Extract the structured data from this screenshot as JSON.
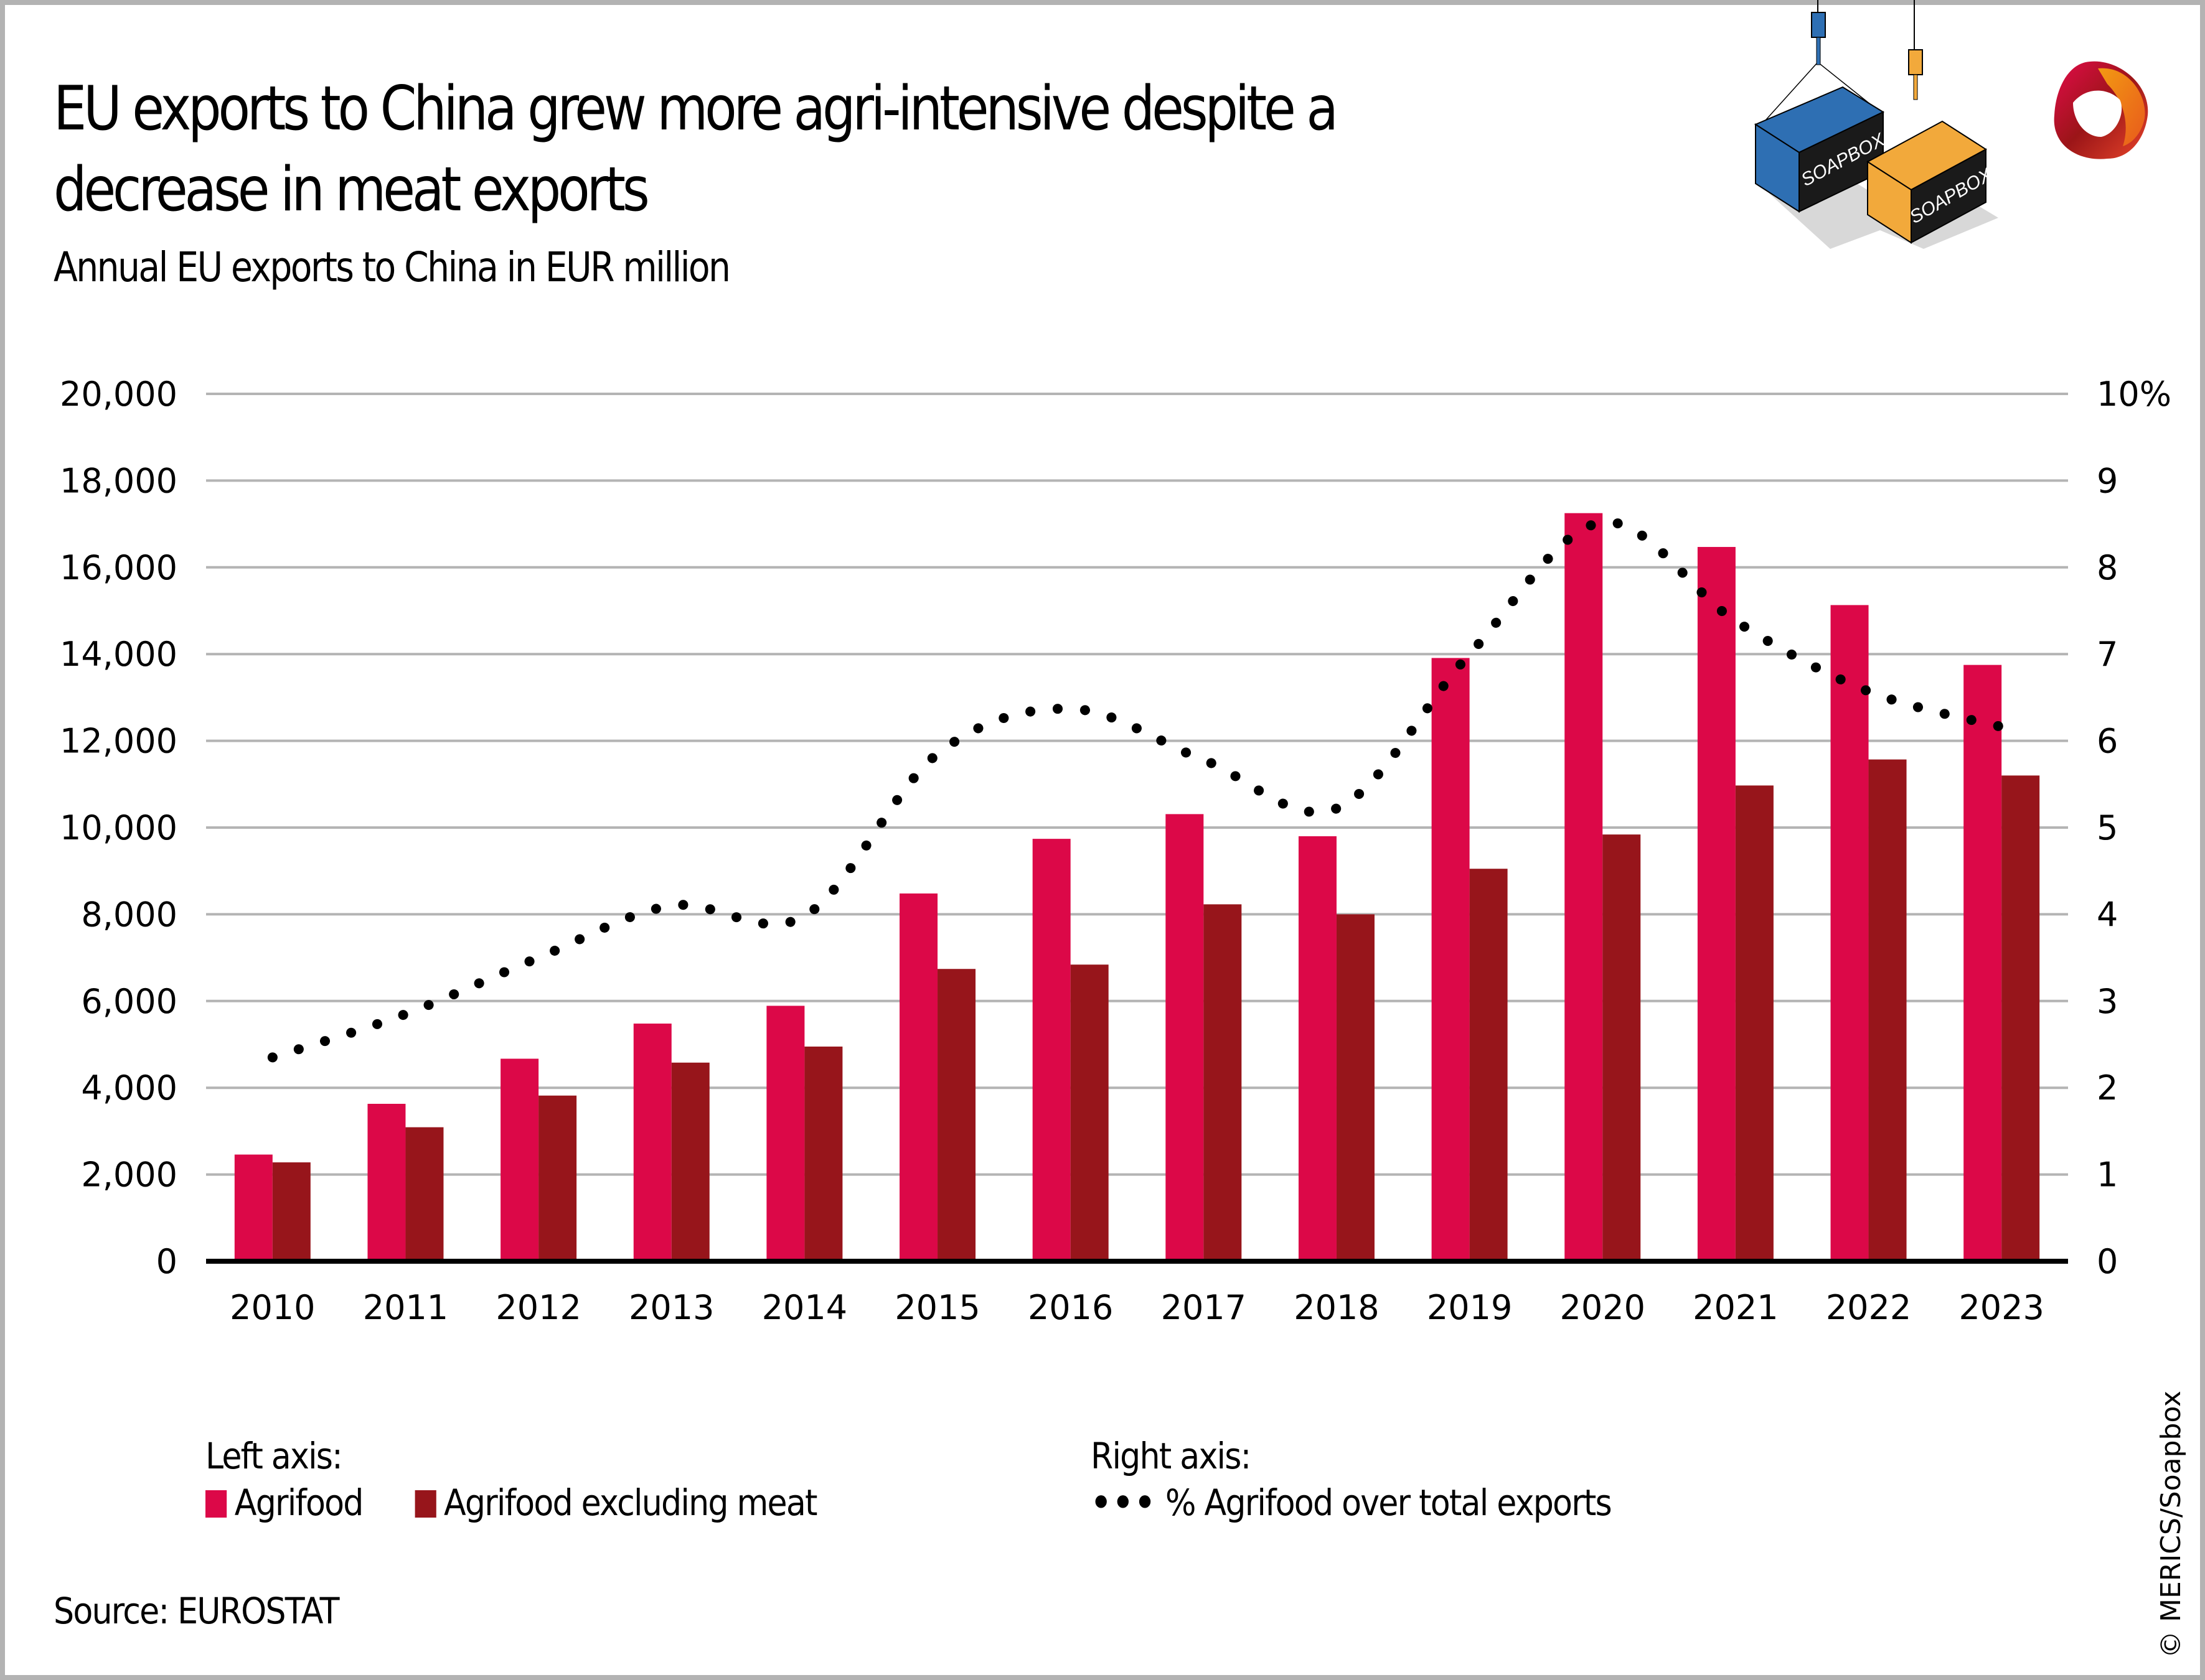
{
  "header": {
    "title": "EU exports to China grew more agri-intensive despite a decrease in meat exports",
    "subtitle": "Annual EU exports to China in EUR million"
  },
  "branding": {
    "illustration": "soapbox-containers-icon",
    "illustration_labels": [
      "SOAPBOX",
      "SOAPBOX"
    ],
    "logo": "merics-logo-icon"
  },
  "legend": {
    "left_heading": "Left axis:",
    "right_heading": "Right axis:",
    "items": [
      {
        "label": "Agrifood",
        "color": "#DC0848",
        "marker": "square"
      },
      {
        "label": "Agrifood excluding meat",
        "color": "#97151B",
        "marker": "square"
      },
      {
        "label": "% Agrifood over total exports",
        "color": "#000000",
        "marker": "dots",
        "symbol": "•••"
      }
    ]
  },
  "footer": {
    "source": "Source: EUROSTAT",
    "copyright": "© MERICS/Soapbox"
  },
  "chart_data": {
    "type": "bar",
    "title": "EU exports to China grew more agri-intensive despite a decrease in meat exports",
    "subtitle": "Annual EU exports to China in EUR million",
    "xlabel": "",
    "ylabel": "EUR million",
    "categories": [
      "2010",
      "2011",
      "2012",
      "2013",
      "2014",
      "2015",
      "2016",
      "2017",
      "2018",
      "2019",
      "2020",
      "2021",
      "2022",
      "2023"
    ],
    "series": [
      {
        "name": "Agrifood",
        "axis": "left",
        "type": "bar",
        "color": "#DC0848",
        "values": [
          2460,
          3630,
          4670,
          5480,
          5890,
          8480,
          9740,
          10310,
          9800,
          13910,
          17250,
          16470,
          15130,
          13750
        ]
      },
      {
        "name": "Agrifood excluding meat",
        "axis": "left",
        "type": "bar",
        "color": "#97151B",
        "values": [
          2280,
          3090,
          3820,
          4580,
          4950,
          6740,
          6840,
          8230,
          8000,
          9050,
          9840,
          10970,
          11570,
          11200
        ]
      },
      {
        "name": "% Agrifood over total exports",
        "axis": "right",
        "type": "line",
        "style": "dotted",
        "color": "#000000",
        "values": [
          2.35,
          2.85,
          3.5,
          4.1,
          3.98,
          5.85,
          6.37,
          5.78,
          5.22,
          7.0,
          8.52,
          7.38,
          6.57,
          6.16
        ]
      }
    ],
    "ylim": [
      0,
      20000
    ],
    "yticks": [
      "0",
      "2,000",
      "4,000",
      "6,000",
      "8,000",
      "10,000",
      "12,000",
      "14,000",
      "16,000",
      "18,000",
      "20,000"
    ],
    "y2lim": [
      0,
      10
    ],
    "y2ticks": [
      "0",
      "1",
      "2",
      "3",
      "4",
      "5",
      "6",
      "7",
      "8",
      "9",
      "10%"
    ],
    "grid": true,
    "legend_position": "bottom"
  }
}
